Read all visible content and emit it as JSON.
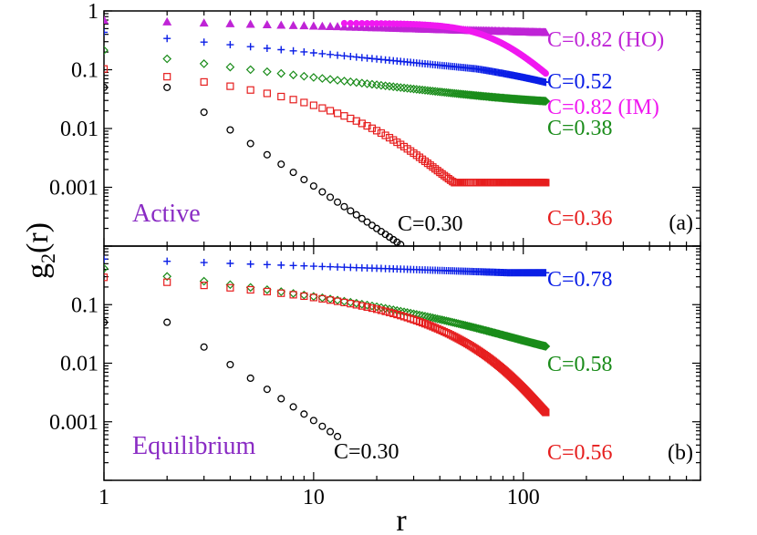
{
  "chart_data": [
    {
      "type": "scatter",
      "panel_label": "(a)",
      "regime_label": "Active",
      "xscale": "log",
      "yscale": "log",
      "xlim": [
        1,
        700
      ],
      "ylim": [
        0.0001,
        1
      ],
      "ylabel": "g₂(r)",
      "x_ticks": [
        "1",
        "10",
        "100"
      ],
      "y_ticks": [
        "1",
        "0.1",
        "0.01",
        "0.001"
      ],
      "series": [
        {
          "name": "C=0.82 (HO)",
          "color": "#bf24d6",
          "marker": "triangle",
          "y0": 0.7,
          "r0": 1,
          "slope": 0.18,
          "r_max": 128
        },
        {
          "name": "C=0.52",
          "color": "#0a1ee6",
          "marker": "plus",
          "y0": 0.34,
          "r0": 2,
          "slope": 0.48,
          "r_max": 128
        },
        {
          "name": "C=0.82 (IM)",
          "color": "#f018f0",
          "marker": "filled-circle",
          "dense_from": 14,
          "y0": 0.62,
          "r_max": 128
        },
        {
          "name": "C=0.38",
          "color": "#1a8c1a",
          "marker": "diamond",
          "y0": 0.155,
          "r0": 2,
          "slope": 0.55,
          "r_max": 128
        },
        {
          "name": "C=0.36",
          "color": "#e61e1e",
          "marker": "square",
          "y0": 0.085,
          "r0": 2,
          "slope": 0.35,
          "r_max": 128
        },
        {
          "name": "C=0.30",
          "color": "#000000",
          "marker": "circle",
          "y0": 0.05,
          "r0": 2,
          "slope": 0.0,
          "r_max": 26
        }
      ]
    },
    {
      "type": "scatter",
      "panel_label": "(b)",
      "regime_label": "Equilibrium",
      "xscale": "log",
      "yscale": "log",
      "xlim": [
        1,
        700
      ],
      "ylim": [
        0.0001,
        1
      ],
      "xlabel": "r",
      "x_ticks": [
        "1",
        "10",
        "100"
      ],
      "y_ticks": [
        "0.1",
        "0.01",
        "0.001"
      ],
      "series": [
        {
          "name": "C=0.78",
          "color": "#0a1ee6",
          "marker": "plus",
          "y0": 0.55,
          "r0": 2,
          "slope": 0.35,
          "r_max": 128
        },
        {
          "name": "C=0.58",
          "color": "#1a8c1a",
          "marker": "diamond",
          "y0": 0.3,
          "r0": 2,
          "slope": 0.3,
          "r_max": 128
        },
        {
          "name": "C=0.56",
          "color": "#e61e1e",
          "marker": "square",
          "y0": 0.25,
          "r0": 2,
          "slope": 0.22,
          "r_max": 128
        },
        {
          "name": "C=0.30",
          "color": "#000000",
          "marker": "circle",
          "y0": 0.045,
          "r0": 2,
          "slope": 0.0,
          "r_max": 13
        }
      ]
    }
  ],
  "axis": {
    "xlabel": "r",
    "ylabel_main": "g",
    "ylabel_sub": "2",
    "ylabel_tail": "(r)"
  }
}
